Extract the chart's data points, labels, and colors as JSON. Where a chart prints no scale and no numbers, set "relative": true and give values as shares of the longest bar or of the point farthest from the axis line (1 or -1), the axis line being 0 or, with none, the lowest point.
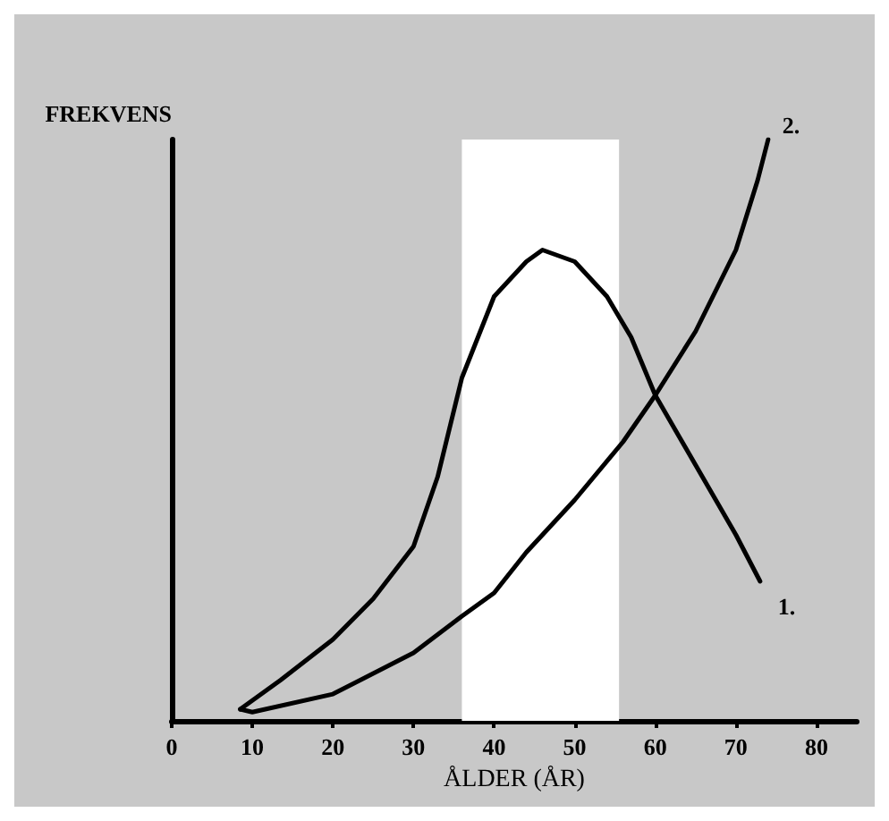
{
  "chart_data": {
    "type": "line",
    "relative": true,
    "xlabel": "ÅLDER (ÅR)",
    "ylabel": "FREKVENS",
    "x": [
      8.5,
      13.5,
      20,
      25,
      30,
      33,
      36,
      40,
      44,
      46,
      50,
      54,
      57,
      60,
      65,
      70,
      73
    ],
    "series": [
      {
        "name": "1.",
        "color": "#000000",
        "values": [
          0.02,
          0.07,
          0.14,
          0.21,
          0.3,
          0.42,
          0.59,
          0.73,
          0.79,
          0.81,
          0.79,
          0.73,
          0.66,
          0.56,
          0.44,
          0.32,
          0.24
        ]
      },
      {
        "name": "2.",
        "color": "#000000",
        "x": [
          8.5,
          10,
          20,
          30,
          36,
          40,
          44,
          50,
          56,
          60,
          65,
          70,
          72.7,
          74
        ],
        "values": [
          0.02,
          0.015,
          0.046,
          0.117,
          0.18,
          0.22,
          0.29,
          0.38,
          0.48,
          0.56,
          0.67,
          0.81,
          0.93,
          1
        ]
      }
    ],
    "xlim": [
      0,
      85
    ],
    "xticks": [
      0,
      10,
      20,
      30,
      40,
      50,
      60,
      70,
      80
    ],
    "grid": false,
    "legend": false,
    "marker": "none",
    "line_style": "solid",
    "bands": [
      {
        "axis": "x",
        "from": 36,
        "to": 55.5,
        "color": "#ffffff"
      }
    ]
  }
}
